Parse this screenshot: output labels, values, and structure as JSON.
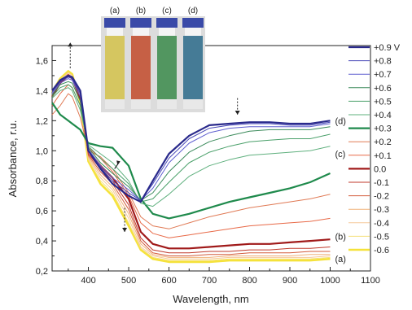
{
  "chart_data": {
    "type": "line",
    "title": "",
    "xlabel": "Wavelength, nm",
    "ylabel": "Absorbance, r.u.",
    "xlim": [
      310,
      1100
    ],
    "ylim": [
      0.2,
      1.7
    ],
    "x_ticks": [
      "400",
      "500",
      "600",
      "700",
      "800",
      "900",
      "1000",
      "1100"
    ],
    "y_ticks": [
      "0,2",
      "0,4",
      "0,6",
      "0,8",
      "1,0",
      "1,2",
      "1,4",
      "1,6"
    ],
    "legend_position": "right",
    "grid": false,
    "x": [
      310,
      330,
      350,
      360,
      380,
      400,
      430,
      460,
      500,
      530,
      560,
      600,
      650,
      700,
      750,
      800,
      850,
      900,
      950,
      1000
    ],
    "series": [
      {
        "name": "+0.9 V",
        "color": "#2a2a8c",
        "width": 2.2,
        "values": [
          1.4,
          1.47,
          1.5,
          1.49,
          1.4,
          1.0,
          0.88,
          0.78,
          0.7,
          0.66,
          0.8,
          0.98,
          1.1,
          1.17,
          1.18,
          1.19,
          1.19,
          1.18,
          1.18,
          1.2
        ]
      },
      {
        "name": "+0.8",
        "color": "#4a4ab8",
        "width": 1,
        "values": [
          1.39,
          1.46,
          1.49,
          1.48,
          1.38,
          1.0,
          0.89,
          0.8,
          0.72,
          0.67,
          0.78,
          0.95,
          1.08,
          1.15,
          1.17,
          1.18,
          1.18,
          1.17,
          1.17,
          1.19
        ]
      },
      {
        "name": "+0.7",
        "color": "#6060d0",
        "width": 1,
        "values": [
          1.38,
          1.45,
          1.48,
          1.47,
          1.36,
          1.01,
          0.9,
          0.82,
          0.74,
          0.67,
          0.75,
          0.92,
          1.05,
          1.12,
          1.15,
          1.16,
          1.16,
          1.16,
          1.16,
          1.18
        ]
      },
      {
        "name": "+0.6",
        "color": "#3a8a5a",
        "width": 1,
        "values": [
          1.37,
          1.44,
          1.46,
          1.45,
          1.33,
          1.02,
          0.92,
          0.85,
          0.76,
          0.67,
          0.72,
          0.86,
          0.99,
          1.06,
          1.1,
          1.13,
          1.14,
          1.14,
          1.14,
          1.16
        ]
      },
      {
        "name": "+0.5",
        "color": "#4aa06a",
        "width": 1,
        "values": [
          1.36,
          1.42,
          1.44,
          1.42,
          1.3,
          1.03,
          0.95,
          0.88,
          0.78,
          0.66,
          0.68,
          0.79,
          0.92,
          0.99,
          1.03,
          1.06,
          1.07,
          1.08,
          1.08,
          1.11
        ]
      },
      {
        "name": "+0.4",
        "color": "#5fb07e",
        "width": 1,
        "values": [
          1.35,
          1.4,
          1.42,
          1.4,
          1.27,
          1.04,
          0.98,
          0.92,
          0.8,
          0.65,
          0.63,
          0.71,
          0.83,
          0.9,
          0.94,
          0.97,
          0.98,
          0.99,
          1.0,
          1.03
        ]
      },
      {
        "name": "+0.3",
        "color": "#1f8a4c",
        "width": 2.2,
        "values": [
          1.32,
          1.24,
          1.2,
          1.18,
          1.14,
          1.05,
          1.03,
          1.02,
          0.9,
          0.68,
          0.58,
          0.55,
          0.58,
          0.62,
          0.66,
          0.69,
          0.72,
          0.75,
          0.79,
          0.85
        ]
      },
      {
        "name": "+0.2",
        "color": "#e07a55",
        "width": 1,
        "values": [
          1.24,
          1.3,
          1.38,
          1.36,
          1.22,
          1.0,
          0.96,
          0.88,
          0.72,
          0.56,
          0.5,
          0.48,
          0.52,
          0.56,
          0.59,
          0.62,
          0.64,
          0.66,
          0.68,
          0.71
        ]
      },
      {
        "name": "+0.1",
        "color": "#e86a48",
        "width": 1,
        "values": [
          1.3,
          1.38,
          1.44,
          1.42,
          1.3,
          1.02,
          0.95,
          0.86,
          0.7,
          0.52,
          0.45,
          0.42,
          0.44,
          0.46,
          0.48,
          0.5,
          0.51,
          0.52,
          0.53,
          0.55
        ]
      },
      {
        "name": "0.0",
        "color": "#a01a1a",
        "width": 2.2,
        "values": [
          1.36,
          1.45,
          1.5,
          1.48,
          1.35,
          1.0,
          0.9,
          0.82,
          0.68,
          0.46,
          0.38,
          0.35,
          0.35,
          0.36,
          0.37,
          0.38,
          0.38,
          0.39,
          0.4,
          0.41
        ]
      },
      {
        "name": "-0.1",
        "color": "#c0392b",
        "width": 1,
        "values": [
          1.36,
          1.45,
          1.5,
          1.48,
          1.34,
          0.98,
          0.88,
          0.8,
          0.64,
          0.42,
          0.34,
          0.32,
          0.32,
          0.33,
          0.33,
          0.34,
          0.34,
          0.35,
          0.35,
          0.36
        ]
      },
      {
        "name": "-0.2",
        "color": "#d35a3a",
        "width": 1,
        "values": [
          1.37,
          1.46,
          1.51,
          1.49,
          1.34,
          0.97,
          0.86,
          0.78,
          0.61,
          0.4,
          0.32,
          0.3,
          0.3,
          0.31,
          0.31,
          0.32,
          0.32,
          0.32,
          0.33,
          0.33
        ]
      },
      {
        "name": "-0.3",
        "color": "#f0b27a",
        "width": 1,
        "values": [
          1.37,
          1.46,
          1.51,
          1.49,
          1.33,
          0.96,
          0.84,
          0.76,
          0.58,
          0.38,
          0.31,
          0.29,
          0.29,
          0.29,
          0.3,
          0.3,
          0.3,
          0.3,
          0.31,
          0.31
        ]
      },
      {
        "name": "-0.4",
        "color": "#f6c89a",
        "width": 1,
        "values": [
          1.38,
          1.47,
          1.52,
          1.5,
          1.33,
          0.95,
          0.82,
          0.74,
          0.55,
          0.36,
          0.3,
          0.28,
          0.28,
          0.28,
          0.29,
          0.29,
          0.29,
          0.29,
          0.29,
          0.3
        ]
      },
      {
        "name": "-0.5",
        "color": "#f5e07a",
        "width": 1,
        "values": [
          1.38,
          1.47,
          1.52,
          1.5,
          1.32,
          0.94,
          0.8,
          0.72,
          0.52,
          0.35,
          0.29,
          0.27,
          0.27,
          0.27,
          0.28,
          0.28,
          0.28,
          0.28,
          0.28,
          0.29
        ]
      },
      {
        "name": "-0.6",
        "color": "#f5e23a",
        "width": 2.6,
        "values": [
          1.39,
          1.48,
          1.53,
          1.51,
          1.32,
          0.93,
          0.78,
          0.7,
          0.5,
          0.34,
          0.28,
          0.26,
          0.26,
          0.26,
          0.27,
          0.27,
          0.27,
          0.27,
          0.27,
          0.28
        ]
      }
    ],
    "annotations": [
      {
        "text": "(d)",
        "x": 1012,
        "y": 1.2
      },
      {
        "text": "(c)",
        "x": 1012,
        "y": 0.98
      },
      {
        "text": "(b)",
        "x": 1012,
        "y": 0.43
      },
      {
        "text": "(a)",
        "x": 1012,
        "y": 0.28
      }
    ],
    "arrows": [
      {
        "x": 355,
        "y_from": 1.55,
        "y_to": 1.72
      },
      {
        "x": 770,
        "y_from": 1.35,
        "y_to": 1.24
      },
      {
        "x": 490,
        "y_from": 0.62,
        "y_to": 0.46
      }
    ],
    "inset_photo": {
      "labels": [
        "(a)",
        "(b)",
        "(c)",
        "(d)"
      ],
      "colors": [
        "#d4c24a",
        "#c24a2a",
        "#3a8a4a",
        "#2a6a8a"
      ]
    }
  }
}
